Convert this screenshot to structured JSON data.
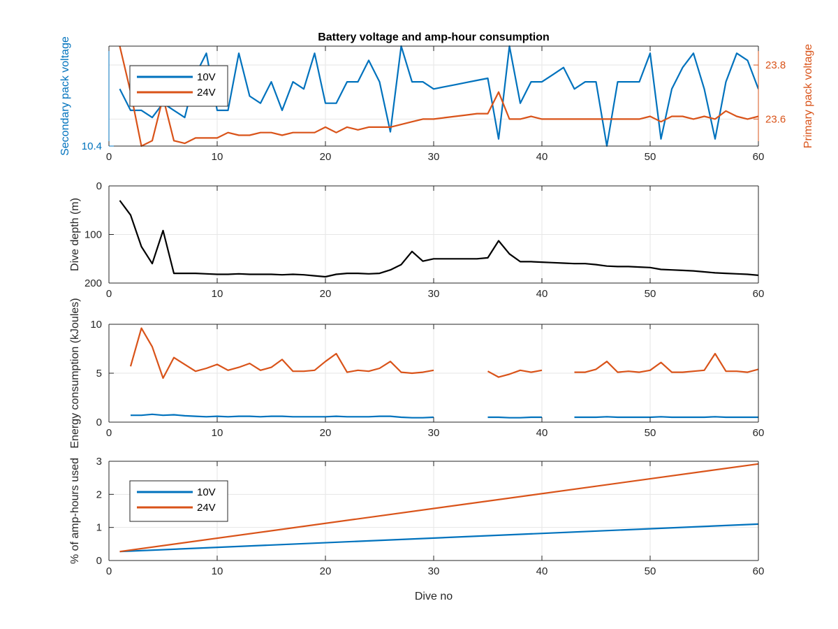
{
  "colors": {
    "blue": "#0072BD",
    "orange": "#D95319",
    "black": "#000000",
    "grid": "#e6e6e6",
    "axis": "#262626"
  },
  "chart_data": [
    {
      "type": "line",
      "title": "Battery voltage and amp-hour consumption",
      "xlim": [
        0,
        60
      ],
      "xticks": [
        0,
        10,
        20,
        30,
        40,
        50,
        60
      ],
      "ylabel_left": "Secondary pack voltage",
      "ylabel_right": "Primary pack voltage",
      "ylim_left": [
        10.4,
        10.54
      ],
      "yticks_left": [
        {
          "value": 10.4,
          "label": "10.4"
        }
      ],
      "ylim_right": [
        23.5,
        23.87
      ],
      "yticks_right": [
        {
          "value": 23.6,
          "label": "23.6"
        },
        {
          "value": 23.8,
          "label": "23.8"
        }
      ],
      "grid": true,
      "legend": {
        "position": "top-left",
        "entries": [
          "10V",
          "24V"
        ]
      },
      "series": [
        {
          "name": "10V",
          "color": "blue",
          "axis": "left",
          "x": [
            1,
            2,
            3,
            4,
            5,
            6,
            7,
            8,
            9,
            10,
            11,
            12,
            13,
            14,
            15,
            16,
            17,
            18,
            19,
            20,
            21,
            22,
            23,
            24,
            25,
            26,
            27,
            28,
            29,
            30,
            31,
            32,
            33,
            34,
            35,
            36,
            37,
            38,
            39,
            40,
            41,
            42,
            43,
            44,
            45,
            46,
            47,
            48,
            49,
            50,
            51,
            52,
            53,
            54,
            55,
            56,
            57,
            58,
            59,
            60
          ],
          "values": [
            10.48,
            10.45,
            10.45,
            10.44,
            10.46,
            10.45,
            10.44,
            10.5,
            10.53,
            10.45,
            10.45,
            10.53,
            10.47,
            10.46,
            10.49,
            10.45,
            10.49,
            10.48,
            10.53,
            10.46,
            10.46,
            10.49,
            10.49,
            10.52,
            10.49,
            10.42,
            10.54,
            10.49,
            10.49,
            10.48,
            10.483,
            10.486,
            10.489,
            10.492,
            10.495,
            10.41,
            10.54,
            10.46,
            10.49,
            10.49,
            10.5,
            10.51,
            10.48,
            10.49,
            10.49,
            10.4,
            10.49,
            10.49,
            10.49,
            10.53,
            10.41,
            10.48,
            10.51,
            10.53,
            10.48,
            10.41,
            10.49,
            10.53,
            10.52,
            10.48
          ]
        },
        {
          "name": "24V",
          "color": "orange",
          "axis": "right",
          "x": [
            1,
            2,
            3,
            4,
            5,
            6,
            7,
            8,
            9,
            10,
            11,
            12,
            13,
            14,
            15,
            16,
            17,
            18,
            19,
            20,
            21,
            22,
            23,
            24,
            25,
            26,
            27,
            28,
            29,
            30,
            31,
            32,
            33,
            34,
            35,
            36,
            37,
            38,
            39,
            40,
            41,
            42,
            43,
            44,
            45,
            46,
            47,
            48,
            49,
            50,
            51,
            52,
            53,
            54,
            55,
            56,
            57,
            58,
            59,
            60
          ],
          "values": [
            23.87,
            23.7,
            23.5,
            23.52,
            23.68,
            23.52,
            23.51,
            23.53,
            23.53,
            23.53,
            23.55,
            23.54,
            23.54,
            23.55,
            23.55,
            23.54,
            23.55,
            23.55,
            23.55,
            23.57,
            23.55,
            23.57,
            23.56,
            23.57,
            23.57,
            23.57,
            23.58,
            23.59,
            23.6,
            23.6,
            23.605,
            23.61,
            23.615,
            23.62,
            23.62,
            23.7,
            23.6,
            23.6,
            23.61,
            23.6,
            23.6,
            23.6,
            23.6,
            23.6,
            23.6,
            23.6,
            23.6,
            23.6,
            23.6,
            23.61,
            23.59,
            23.61,
            23.61,
            23.6,
            23.61,
            23.6,
            23.63,
            23.61,
            23.6,
            23.61
          ]
        }
      ]
    },
    {
      "type": "line",
      "xlim": [
        0,
        60
      ],
      "xticks": [
        0,
        10,
        20,
        30,
        40,
        50,
        60
      ],
      "ylabel": "Dive depth (m)",
      "ylim": [
        0,
        200
      ],
      "y_reversed": true,
      "yticks": [
        {
          "value": 0,
          "label": "0"
        },
        {
          "value": 100,
          "label": "100"
        },
        {
          "value": 200,
          "label": "200"
        }
      ],
      "grid": true,
      "series": [
        {
          "color": "black",
          "x": [
            1,
            2,
            3,
            4,
            5,
            6,
            7,
            8,
            9,
            10,
            11,
            12,
            13,
            14,
            15,
            16,
            17,
            18,
            19,
            20,
            21,
            22,
            23,
            24,
            25,
            26,
            27,
            28,
            29,
            30,
            31,
            32,
            33,
            34,
            35,
            36,
            37,
            38,
            39,
            40,
            41,
            42,
            43,
            44,
            45,
            46,
            47,
            48,
            49,
            50,
            51,
            52,
            53,
            54,
            55,
            56,
            57,
            58,
            59,
            60
          ],
          "values": [
            30,
            60,
            125,
            160,
            92,
            180,
            180,
            180,
            181,
            182,
            182,
            181,
            182,
            182,
            182,
            183,
            182,
            183,
            185,
            187,
            182,
            180,
            180,
            181,
            180,
            173,
            162,
            135,
            155,
            150,
            150,
            150,
            150,
            150,
            148,
            113,
            140,
            156,
            156,
            157,
            158,
            159,
            160,
            160,
            162,
            165,
            166,
            166,
            167,
            168,
            172,
            173,
            174,
            175,
            177,
            179,
            180,
            181,
            182,
            184
          ]
        }
      ]
    },
    {
      "type": "line",
      "xlim": [
        0,
        60
      ],
      "xticks": [
        0,
        10,
        20,
        30,
        40,
        50,
        60
      ],
      "ylabel": "Energy consumption (kJoules)",
      "ylim": [
        0,
        10
      ],
      "yticks": [
        {
          "value": 0,
          "label": "0"
        },
        {
          "value": 5,
          "label": "5"
        },
        {
          "value": 10,
          "label": "10"
        }
      ],
      "grid": true,
      "series": [
        {
          "name": "10V",
          "color": "blue",
          "x": [
            2,
            3,
            4,
            5,
            6,
            7,
            8,
            9,
            10,
            11,
            12,
            13,
            14,
            15,
            16,
            17,
            18,
            19,
            20,
            21,
            22,
            23,
            24,
            25,
            26,
            27,
            28,
            29,
            30,
            null,
            35,
            36,
            37,
            38,
            39,
            40,
            null,
            43,
            44,
            45,
            46,
            47,
            48,
            49,
            50,
            51,
            52,
            53,
            54,
            55,
            56,
            57,
            58,
            59,
            60
          ],
          "values": [
            0.7,
            0.7,
            0.8,
            0.7,
            0.75,
            0.65,
            0.6,
            0.55,
            0.6,
            0.55,
            0.6,
            0.6,
            0.55,
            0.6,
            0.6,
            0.55,
            0.55,
            0.55,
            0.55,
            0.6,
            0.55,
            0.55,
            0.55,
            0.6,
            0.6,
            0.5,
            0.45,
            0.45,
            0.5,
            null,
            0.5,
            0.5,
            0.45,
            0.45,
            0.5,
            0.5,
            null,
            0.5,
            0.5,
            0.5,
            0.55,
            0.5,
            0.5,
            0.5,
            0.5,
            0.55,
            0.5,
            0.5,
            0.5,
            0.5,
            0.55,
            0.5,
            0.5,
            0.5,
            0.5
          ]
        },
        {
          "name": "24V",
          "color": "orange",
          "x": [
            2,
            3,
            4,
            5,
            6,
            7,
            8,
            9,
            10,
            11,
            12,
            13,
            14,
            15,
            16,
            17,
            18,
            19,
            20,
            21,
            22,
            23,
            24,
            25,
            26,
            27,
            28,
            29,
            30,
            null,
            35,
            36,
            37,
            38,
            39,
            40,
            null,
            43,
            44,
            45,
            46,
            47,
            48,
            49,
            50,
            51,
            52,
            53,
            54,
            55,
            56,
            57,
            58,
            59,
            60
          ],
          "values": [
            5.7,
            9.6,
            7.7,
            4.5,
            6.6,
            5.9,
            5.2,
            5.5,
            5.9,
            5.3,
            5.6,
            6.0,
            5.3,
            5.6,
            6.4,
            5.2,
            5.2,
            5.3,
            6.2,
            7.0,
            5.1,
            5.3,
            5.2,
            5.5,
            6.2,
            5.1,
            5.0,
            5.1,
            5.3,
            null,
            5.2,
            4.6,
            4.9,
            5.3,
            5.1,
            5.3,
            null,
            5.1,
            5.1,
            5.4,
            6.2,
            5.1,
            5.2,
            5.1,
            5.3,
            6.1,
            5.1,
            5.1,
            5.2,
            5.3,
            7.0,
            5.2,
            5.2,
            5.1,
            5.4
          ]
        }
      ]
    },
    {
      "type": "line",
      "xlabel": "Dive no",
      "xlim": [
        0,
        60
      ],
      "xticks": [
        0,
        10,
        20,
        30,
        40,
        50,
        60
      ],
      "ylabel": "% of amp-hours used",
      "ylim": [
        0,
        3
      ],
      "yticks": [
        {
          "value": 0,
          "label": "0"
        },
        {
          "value": 1,
          "label": "1"
        },
        {
          "value": 2,
          "label": "2"
        },
        {
          "value": 3,
          "label": "3"
        }
      ],
      "grid": true,
      "legend": {
        "position": "lower-left",
        "entries": [
          "10V",
          "24V"
        ]
      },
      "series": [
        {
          "name": "10V",
          "color": "blue",
          "x": [
            1,
            60
          ],
          "values": [
            0.27,
            1.1
          ]
        },
        {
          "name": "24V",
          "color": "orange",
          "x": [
            1,
            60
          ],
          "values": [
            0.27,
            2.92
          ]
        }
      ]
    }
  ]
}
